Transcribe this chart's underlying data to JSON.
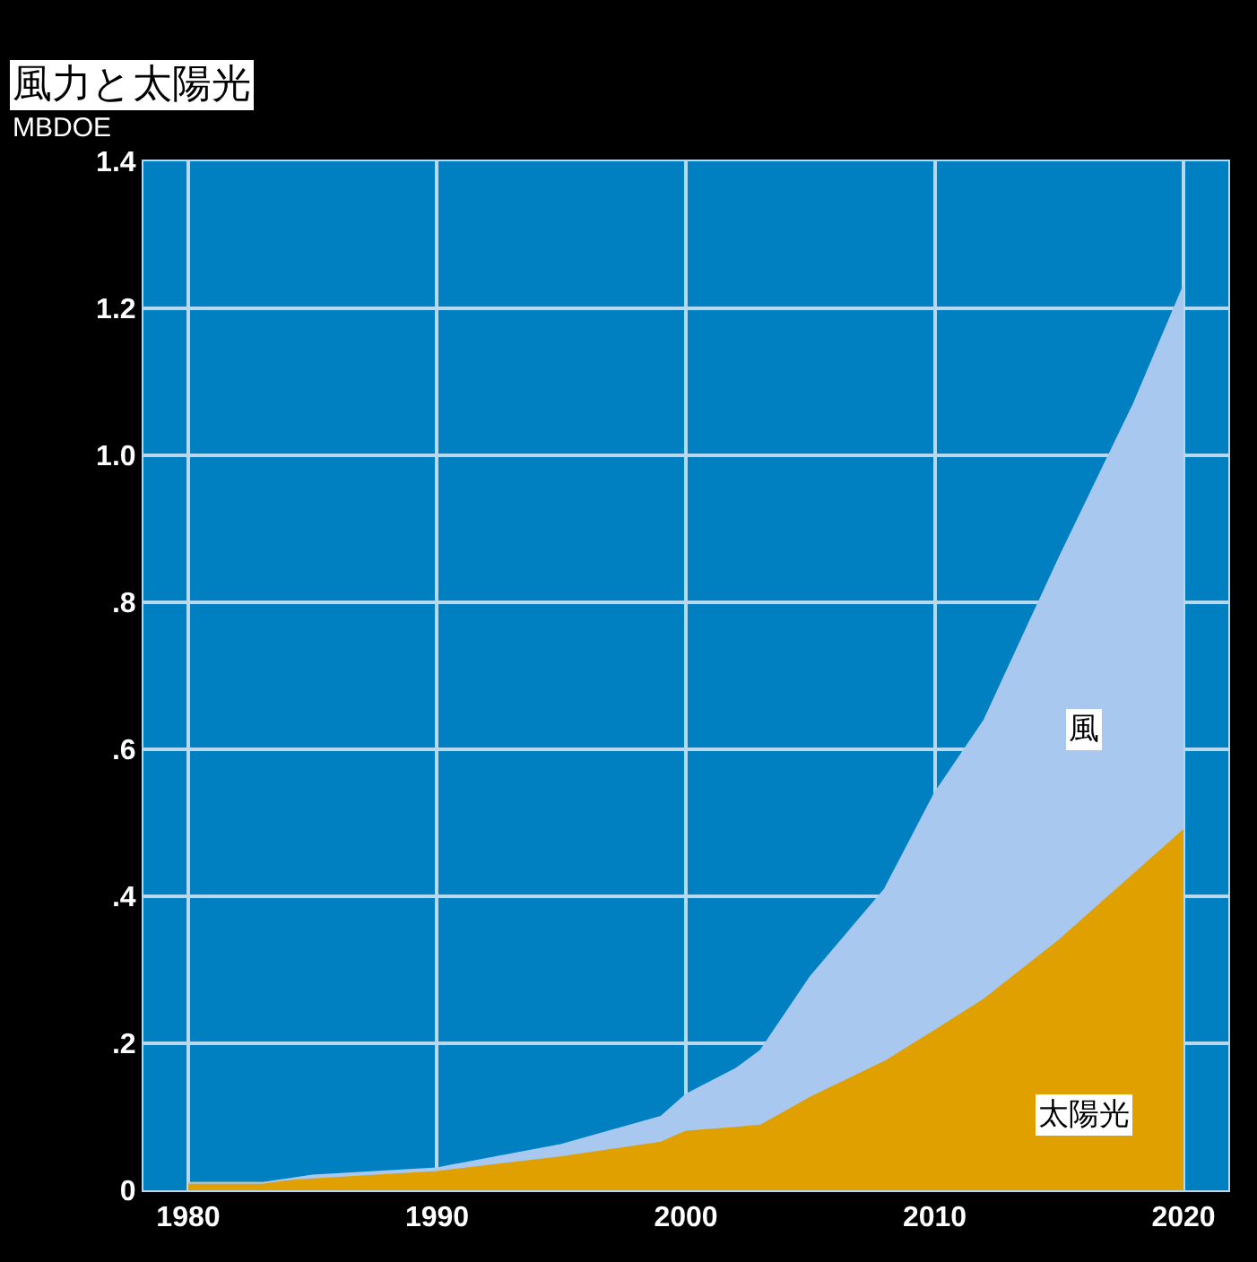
{
  "chart_data": {
    "type": "area",
    "title": "風力と太陽光",
    "ylabel": "MBDOE",
    "stacked": true,
    "x": [
      1980,
      1983,
      1985,
      1990,
      1995,
      1999,
      2000,
      2002,
      2003,
      2005,
      2008,
      2010,
      2012,
      2015,
      2018,
      2020
    ],
    "series": [
      {
        "name": "太陽光",
        "color": "#e0a000",
        "values": [
          0.01,
          0.01,
          0.015,
          0.025,
          0.045,
          0.065,
          0.08,
          0.085,
          0.088,
          0.126,
          0.175,
          0.217,
          0.26,
          0.34,
          0.43,
          0.49
        ]
      },
      {
        "name": "風",
        "color": "#a8c8f0",
        "values": [
          0,
          0,
          0.005,
          0.005,
          0.017,
          0.035,
          0.05,
          0.08,
          0.102,
          0.164,
          0.235,
          0.323,
          0.38,
          0.52,
          0.64,
          0.74
        ]
      }
    ],
    "xlim": [
      1978.2,
      2021.8
    ],
    "xticks": [
      1980,
      1990,
      2000,
      2010,
      2020
    ],
    "ylim": [
      0,
      1.4
    ],
    "yticks": [
      0,
      {
        "value": 0.2,
        "label": ".2"
      },
      {
        "value": 0.4,
        "label": ".4"
      },
      {
        "value": 0.6,
        "label": ".6"
      },
      {
        "value": 0.8,
        "label": ".8"
      },
      {
        "value": 1,
        "label": "1.0"
      },
      {
        "value": 1.2,
        "label": "1.2"
      },
      1.4
    ],
    "grid": true
  }
}
